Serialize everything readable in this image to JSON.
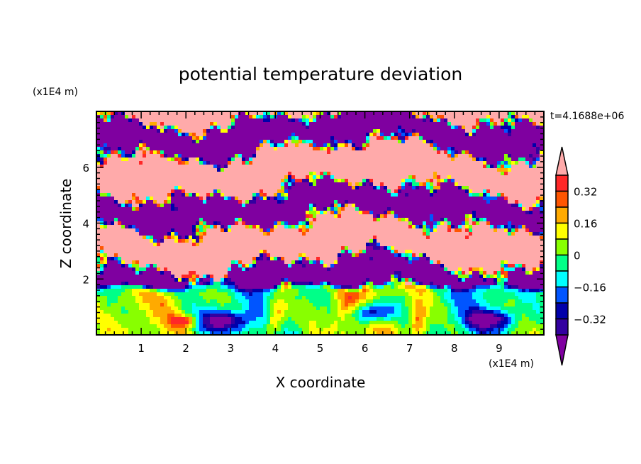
{
  "chart_data": {
    "type": "heatmap",
    "title": "potential temperature deviation",
    "xlabel": "X coordinate",
    "ylabel": "Z coordinate",
    "x_unit_label": "(x1E4 m)",
    "y_unit_label": "(x1E4 m)",
    "time_label": "t=4.1688e+06",
    "xlim": [
      0,
      10
    ],
    "ylim": [
      0,
      8
    ],
    "x_ticks": [
      "1",
      "2",
      "3",
      "4",
      "5",
      "6",
      "7",
      "8",
      "9"
    ],
    "y_ticks": [
      "2",
      "4",
      "6"
    ],
    "x_tick_values": [
      1,
      2,
      3,
      4,
      5,
      6,
      7,
      8,
      9
    ],
    "y_tick_values": [
      2,
      4,
      6
    ],
    "colorbar": {
      "levels": [
        -0.4,
        -0.32,
        -0.24,
        -0.16,
        -0.08,
        0,
        0.08,
        0.16,
        0.24,
        0.32,
        0.4
      ],
      "labels": [
        "0.32",
        "0.16",
        "0",
        "-0.16",
        "-0.32"
      ],
      "label_values": [
        0.32,
        0.16,
        0,
        -0.16,
        -0.32
      ],
      "colors": [
        "#7f00a0",
        "#3300a0",
        "#0000aa",
        "#0055ff",
        "#00ffff",
        "#00ff88",
        "#88ff00",
        "#ffff00",
        "#ffaa00",
        "#ff5500",
        "#ff2828",
        "#ffaaaa"
      ],
      "extend": "both"
    },
    "field_description_regions": [
      "upper (z>2): alternating bands beyond +0.4 and below -0.4",
      "lower (z<2): mixed -0.24..0.32 with cold eddies near x=2.8, 6.1, 8.8"
    ]
  }
}
